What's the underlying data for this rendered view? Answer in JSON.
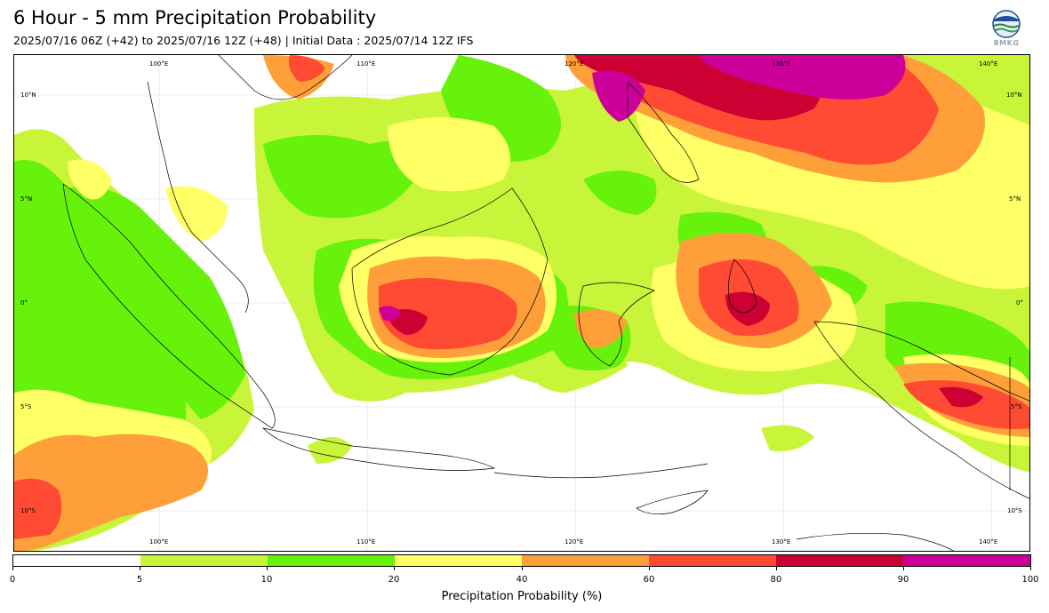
{
  "header": {
    "title": "6 Hour - 5 mm Precipitation Probability",
    "subtitle": "2025/07/16 06Z (+42) to 2025/07/16 12Z (+48) | Initial Data : 2025/07/14 12Z IFS"
  },
  "logo": {
    "icon": "bmkg-logo-icon",
    "text": "BMKG"
  },
  "map": {
    "lon_labels_top": [
      "100°E",
      "110°E",
      "120°E",
      "130°E",
      "140°E"
    ],
    "lon_labels_bottom": [
      "100°E",
      "110°E",
      "120°E",
      "130°E",
      "140°E"
    ],
    "lat_labels_left": [
      "10°N",
      "5°N",
      "0°",
      "5°S",
      "10°S"
    ],
    "lat_labels_right": [
      "10°N",
      "5°N",
      "0°",
      "5°S",
      "10°S"
    ]
  },
  "colorbar": {
    "ticks": [
      "0",
      "5",
      "10",
      "20",
      "40",
      "60",
      "80",
      "90",
      "100"
    ],
    "colors": [
      "#ffffff",
      "#c8f53a",
      "#66f20a",
      "#ffff66",
      "#ff9f3a",
      "#ff4b33",
      "#cc0033",
      "#cc0099"
    ],
    "label": "Precipitation Probability (%)"
  },
  "legend_colors": {
    "5-10": "#c8f53a",
    "10-20": "#66f20a",
    "20-40": "#ffff66",
    "40-60": "#ff9f3a",
    "60-80": "#ff4b33",
    "80-90": "#cc0033",
    "90-100": "#cc0099"
  }
}
